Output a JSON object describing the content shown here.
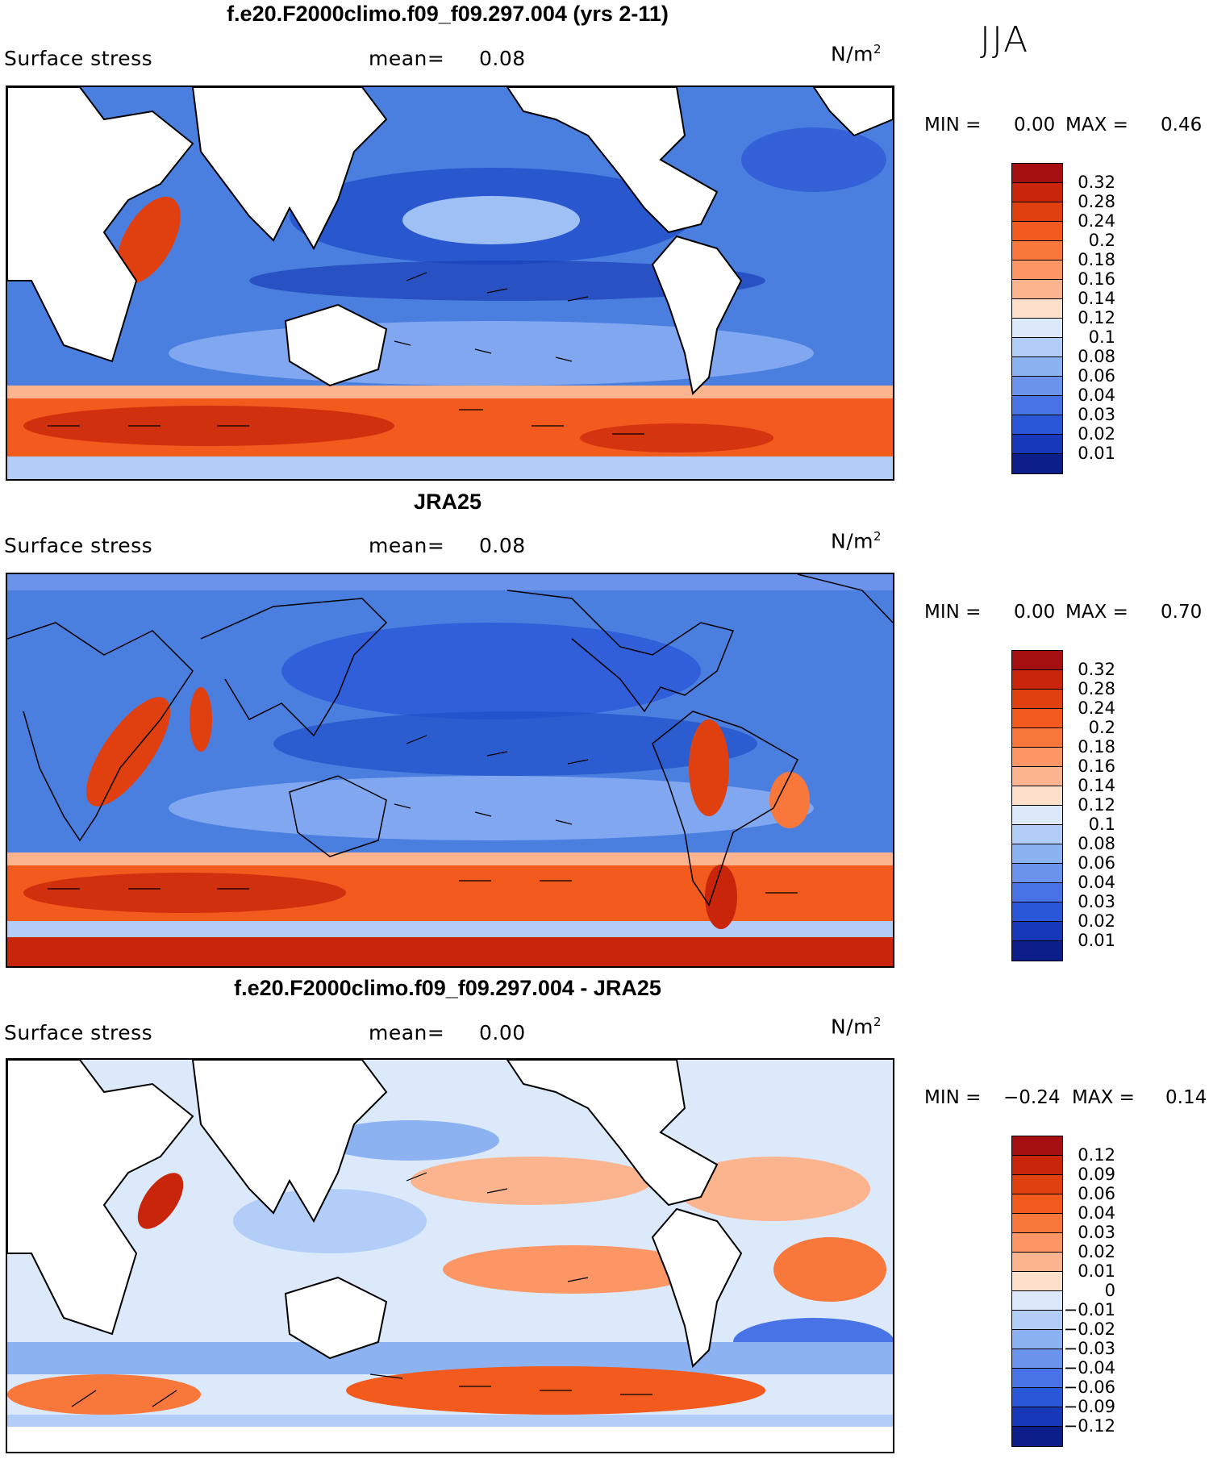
{
  "season": "JJA",
  "panels": [
    {
      "title": "f.e20.F2000climo.f09_f09.297.004 (yrs 2-11)",
      "variable": "Surface stress",
      "mean_label": "mean=",
      "mean_value": "0.08",
      "units": "N/m",
      "units_sup": "2",
      "min_label": "MIN =",
      "min_value": "0.00",
      "max_label": "MAX =",
      "max_value": "0.46",
      "palette": "abs"
    },
    {
      "title": "JRA25",
      "variable": "Surface stress",
      "mean_label": "mean=",
      "mean_value": "0.08",
      "units": "N/m",
      "units_sup": "2",
      "min_label": "MIN =",
      "min_value": "0.00",
      "max_label": "MAX =",
      "max_value": "0.70",
      "palette": "abs"
    },
    {
      "title": "f.e20.F2000climo.f09_f09.297.004 - JRA25",
      "variable": "Surface stress",
      "mean_label": "mean=",
      "mean_value": "0.00",
      "units": "N/m",
      "units_sup": "2",
      "min_label": "MIN =",
      "min_value": "−0.24",
      "max_label": "MAX =",
      "max_value": "0.14",
      "palette": "diff"
    }
  ],
  "colorbars": {
    "abs": {
      "levels": [
        "0.32",
        "0.28",
        "0.24",
        "0.2",
        "0.18",
        "0.16",
        "0.14",
        "0.12",
        "0.1",
        "0.08",
        "0.06",
        "0.04",
        "0.03",
        "0.02",
        "0.01"
      ],
      "colors": [
        "#a50f0f",
        "#c8250a",
        "#e0400f",
        "#f25a1e",
        "#f8773a",
        "#fc9664",
        "#fcb48e",
        "#fde0cc",
        "#dbe9fb",
        "#b2cdf7",
        "#8db2f2",
        "#6b93ec",
        "#4873e6",
        "#2a57d8",
        "#1738b8",
        "#0b1e8a"
      ]
    },
    "diff": {
      "levels": [
        "0.12",
        "0.09",
        "0.06",
        "0.04",
        "0.03",
        "0.02",
        "0.01",
        "0",
        "−0.01",
        "−0.02",
        "−0.03",
        "−0.04",
        "−0.06",
        "−0.09",
        "−0.12"
      ],
      "colors": [
        "#a50f0f",
        "#c8250a",
        "#e0400f",
        "#f25a1e",
        "#f8773a",
        "#fc9664",
        "#fcb48e",
        "#fde0cc",
        "#dbe9fb",
        "#b2cdf7",
        "#8db2f2",
        "#6b93ec",
        "#4873e6",
        "#2a57d8",
        "#1738b8",
        "#0b1e8a"
      ]
    }
  }
}
